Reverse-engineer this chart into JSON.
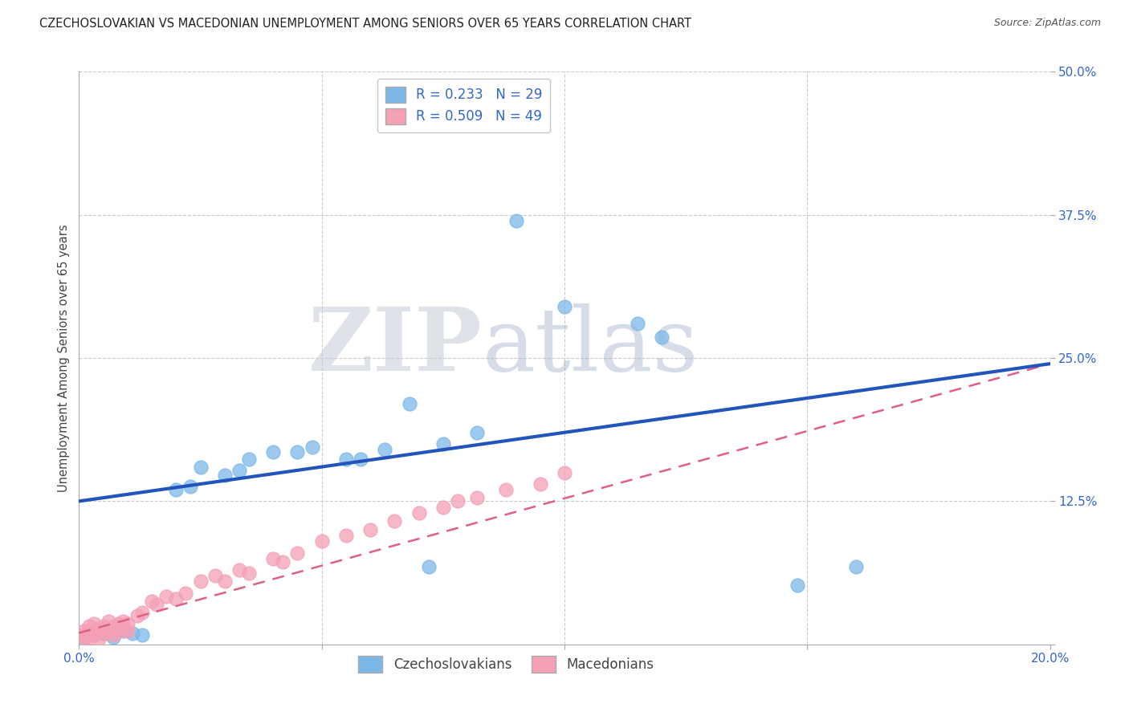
{
  "title": "CZECHOSLOVAKIAN VS MACEDONIAN UNEMPLOYMENT AMONG SENIORS OVER 65 YEARS CORRELATION CHART",
  "source": "Source: ZipAtlas.com",
  "ylabel": "Unemployment Among Seniors over 65 years",
  "R1": 0.233,
  "N1": 29,
  "R2": 0.509,
  "N2": 49,
  "color1": "#7BB8E8",
  "color2": "#F4A0B5",
  "line_color1": "#2255BB",
  "line_color2": "#E06080",
  "line1_x0": 0.0,
  "line1_y0": 0.125,
  "line1_x1": 0.2,
  "line1_y1": 0.245,
  "line2_x0": 0.0,
  "line2_y0": 0.01,
  "line2_x1": 0.2,
  "line2_y1": 0.245,
  "xlim": [
    0.0,
    0.2
  ],
  "ylim": [
    0.0,
    0.5
  ],
  "background_color": "#FFFFFF",
  "grid_color": "#CCCCCC",
  "legend_label_1": "Czechoslovakians",
  "legend_label_2": "Macedonians",
  "watermark_zip_color": "#C8D0DC",
  "watermark_atlas_color": "#A8B8D0",
  "czech_x": [
    0.001,
    0.003,
    0.005,
    0.007,
    0.009,
    0.011,
    0.013,
    0.02,
    0.025,
    0.03,
    0.035,
    0.04,
    0.048,
    0.055,
    0.063,
    0.068,
    0.075,
    0.082,
    0.09,
    0.1,
    0.115,
    0.12,
    0.148,
    0.16,
    0.023,
    0.033,
    0.045,
    0.058,
    0.072
  ],
  "czech_y": [
    0.005,
    0.008,
    0.01,
    0.006,
    0.012,
    0.01,
    0.008,
    0.135,
    0.155,
    0.148,
    0.162,
    0.168,
    0.172,
    0.162,
    0.17,
    0.21,
    0.175,
    0.185,
    0.37,
    0.295,
    0.28,
    0.268,
    0.052,
    0.068,
    0.138,
    0.152,
    0.168,
    0.162,
    0.068
  ],
  "mac_x": [
    0.001,
    0.001,
    0.001,
    0.002,
    0.002,
    0.002,
    0.003,
    0.003,
    0.003,
    0.004,
    0.004,
    0.005,
    0.005,
    0.006,
    0.006,
    0.007,
    0.007,
    0.008,
    0.008,
    0.009,
    0.009,
    0.01,
    0.01,
    0.012,
    0.013,
    0.015,
    0.016,
    0.018,
    0.02,
    0.022,
    0.025,
    0.028,
    0.03,
    0.033,
    0.035,
    0.04,
    0.042,
    0.045,
    0.05,
    0.055,
    0.06,
    0.065,
    0.07,
    0.075,
    0.078,
    0.082,
    0.088,
    0.095,
    0.1
  ],
  "mac_y": [
    0.004,
    0.008,
    0.012,
    0.006,
    0.01,
    0.016,
    0.008,
    0.012,
    0.018,
    0.005,
    0.014,
    0.01,
    0.016,
    0.012,
    0.02,
    0.008,
    0.016,
    0.012,
    0.018,
    0.014,
    0.02,
    0.012,
    0.018,
    0.025,
    0.028,
    0.038,
    0.035,
    0.042,
    0.04,
    0.045,
    0.055,
    0.06,
    0.055,
    0.065,
    0.062,
    0.075,
    0.072,
    0.08,
    0.09,
    0.095,
    0.1,
    0.108,
    0.115,
    0.12,
    0.125,
    0.128,
    0.135,
    0.14,
    0.15
  ]
}
